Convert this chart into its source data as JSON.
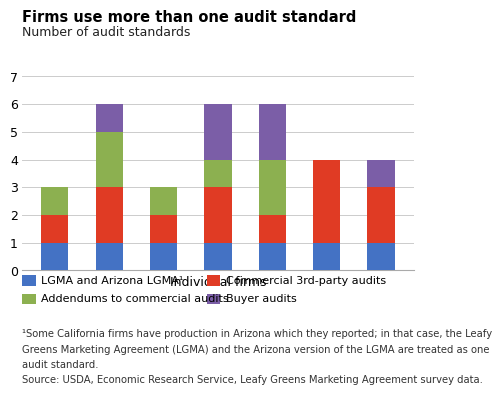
{
  "title": "Firms use more than one audit standard",
  "ylabel": "Number of audit standards",
  "xlabel": "Individual firms",
  "ylim": [
    0,
    7
  ],
  "yticks": [
    0,
    1,
    2,
    3,
    4,
    5,
    6,
    7
  ],
  "n_firms": 7,
  "bars": {
    "lgma": [
      1,
      1,
      1,
      1,
      1,
      1,
      1
    ],
    "commercial": [
      1,
      2,
      1,
      2,
      1,
      3,
      2
    ],
    "addendums": [
      1,
      2,
      1,
      1,
      2,
      0,
      0
    ],
    "buyer": [
      0,
      1,
      0,
      2,
      2,
      0,
      1
    ]
  },
  "colors": {
    "lgma": "#4472c4",
    "commercial": "#e03b24",
    "addendums": "#8cb050",
    "buyer": "#7b5ea7"
  },
  "legend_labels": {
    "lgma": "LGMA and Arizona LGMA¹",
    "commercial": "Commercial 3rd-party audits",
    "addendums": "Addendums to commercial audits",
    "buyer": "Buyer audits"
  },
  "footnote_line1": "¹Some California firms have production in Arizona which they reported; in that case, the Leafy",
  "footnote_line2": "Greens Marketing Agreement (LGMA) and the Arizona version of the LGMA are treated as one",
  "footnote_line3": "audit standard.",
  "footnote_line4": "Source: USDA, Economic Research Service, Leafy Greens Marketing Agreement survey data.",
  "bar_width": 0.5,
  "background_color": "#ffffff",
  "title_fontsize": 10.5,
  "ylabel_fontsize": 9,
  "xlabel_fontsize": 9,
  "tick_fontsize": 9,
  "legend_fontsize": 8,
  "footnote_fontsize": 7.2
}
